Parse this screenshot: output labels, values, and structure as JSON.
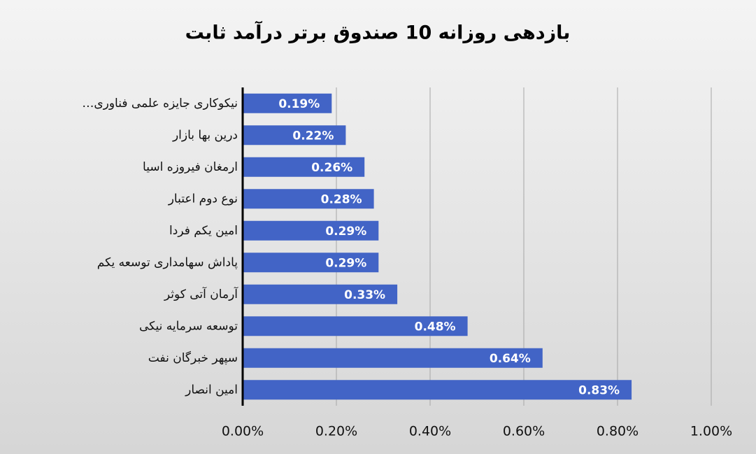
{
  "chart_data": {
    "type": "barh",
    "title": "بازدهی روزانه 10 صندوق برتر درآمد ثابت",
    "categories": [
      "نیکوکاری جایزه علمی فناوری…",
      "درین بها بازار",
      "ارمغان فیروزه اسیا",
      "نوع دوم اعتبار",
      "امین یکم فردا",
      "پاداش سهامداری توسعه یکم",
      "آرمان آتی کوثر",
      "توسعه سرمایه نیکی",
      "سپهر خبرگان نفت",
      "امین انصار"
    ],
    "values": [
      0.19,
      0.22,
      0.26,
      0.28,
      0.29,
      0.29,
      0.33,
      0.48,
      0.64,
      0.83
    ],
    "value_labels": [
      "0.19%",
      "0.22%",
      "0.26%",
      "0.28%",
      "0.29%",
      "0.29%",
      "0.33%",
      "0.48%",
      "0.64%",
      "0.83%"
    ],
    "color": "#4264c6",
    "xlim": [
      0,
      1
    ],
    "xticks": [
      {
        "value": 0,
        "label": "0.00%"
      },
      {
        "value": 0.2,
        "label": "0.20%"
      },
      {
        "value": 0.4,
        "label": "0.40%"
      },
      {
        "value": 0.6,
        "label": "0.60%"
      },
      {
        "value": 0.8,
        "label": "0.80%"
      },
      {
        "value": 1,
        "label": "1.00%"
      }
    ],
    "grid": true
  }
}
